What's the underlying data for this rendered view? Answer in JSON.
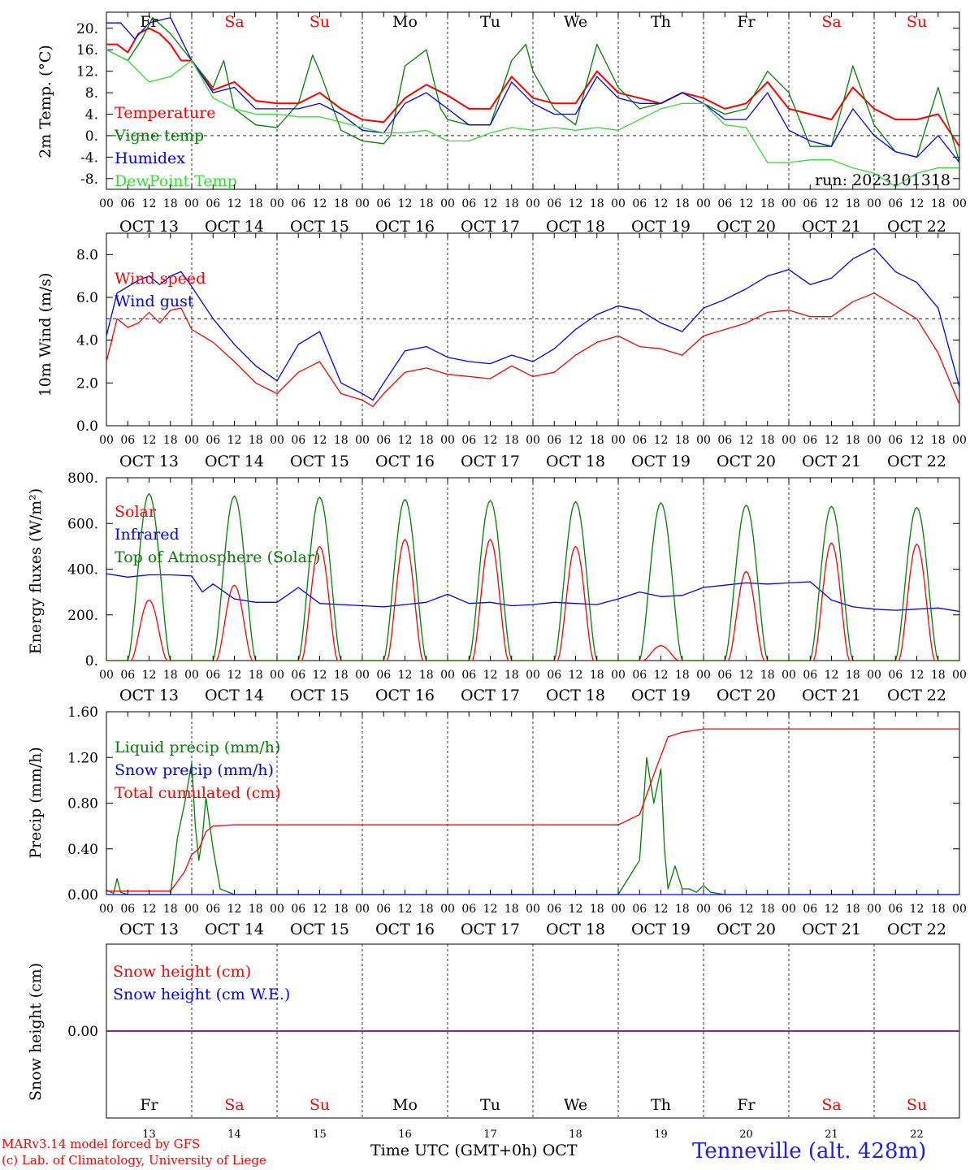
{
  "run_label": "run: 2023101318",
  "footer": {
    "credit_line1": "MARv3.14 model forced by GFS",
    "credit_line2": "(c) Lab. of Climatology, University of Liege",
    "axis_title": "Time UTC (GMT+0h) OCT",
    "station": "Tenneville (alt. 428m)"
  },
  "time_axis": {
    "hour_ticks": [
      "00",
      "06",
      "12",
      "18"
    ],
    "day_labels": [
      "OCT 13",
      "OCT 14",
      "OCT 15",
      "OCT 16",
      "OCT 17",
      "OCT 18",
      "OCT 19",
      "OCT 20",
      "OCT 21",
      "OCT 22"
    ],
    "weekdays": [
      "Fr",
      "Sa",
      "Su",
      "Mo",
      "Tu",
      "We",
      "Th",
      "Fr",
      "Sa",
      "Su"
    ],
    "weekday_colors": [
      "#000000",
      "#ff0000",
      "#ff0000",
      "#000000",
      "#000000",
      "#000000",
      "#000000",
      "#000000",
      "#ff0000",
      "#ff0000"
    ],
    "day_numbers": [
      "13",
      "14",
      "15",
      "16",
      "17",
      "18",
      "19",
      "20",
      "21",
      "22"
    ]
  },
  "chart_data": [
    {
      "type": "line",
      "ylabel": "2m Temp. (°C)",
      "ylim": [
        -10,
        23
      ],
      "yticks": [
        "20.",
        "16.",
        "12.",
        "8.",
        "4.",
        "0.",
        "-4.",
        "-8."
      ],
      "ytick_values": [
        20,
        16,
        12,
        8,
        4,
        0,
        -4,
        -8
      ],
      "dashed_reference": 0,
      "legend_placement": "top-left inside",
      "series": [
        {
          "name": "Temperature",
          "color": "#ff0000",
          "x": [
            0,
            3,
            6,
            9,
            12,
            15,
            18,
            21,
            24,
            30,
            36,
            42,
            48,
            54,
            60,
            66,
            72,
            78,
            84,
            90,
            96,
            102,
            108,
            114,
            120,
            126,
            132,
            138,
            144,
            150,
            156,
            162,
            168,
            174,
            180,
            186,
            192,
            198,
            204,
            210,
            216,
            222,
            228,
            234,
            240
          ],
          "y": [
            17,
            17,
            15.5,
            19,
            20,
            19,
            17,
            14,
            14,
            8.5,
            10,
            6.5,
            6,
            6,
            8,
            5,
            3,
            2.5,
            7,
            9.5,
            7.5,
            5,
            5,
            11,
            7,
            6,
            6,
            12,
            8,
            7,
            6,
            8,
            7,
            5,
            6,
            10,
            5,
            4,
            3,
            9,
            5,
            3,
            3,
            4,
            -2
          ]
        },
        {
          "name": "Vigne temp",
          "color": "#008000",
          "x": [
            0,
            6,
            10,
            13,
            18,
            24,
            30,
            33,
            36,
            42,
            48,
            54,
            58,
            60,
            66,
            72,
            78,
            80,
            84,
            90,
            94,
            96,
            102,
            108,
            114,
            118,
            120,
            126,
            132,
            138,
            144,
            150,
            156,
            162,
            168,
            174,
            180,
            186,
            192,
            198,
            204,
            210,
            216,
            222,
            228,
            234,
            240
          ],
          "y": [
            16,
            14,
            18,
            22,
            19,
            14,
            9,
            14,
            5,
            2,
            1.5,
            6,
            15,
            12,
            1,
            -1,
            -1.5,
            0,
            13,
            16,
            5,
            3,
            2,
            2,
            14,
            17,
            12,
            5,
            2,
            17,
            9,
            5,
            6,
            8,
            6,
            4,
            5,
            12,
            8,
            -2,
            -2,
            13,
            2,
            -3,
            -4,
            9,
            -5
          ]
        },
        {
          "name": "Humidex",
          "color": "#0000ff",
          "x": [
            0,
            4,
            8,
            12,
            18,
            24,
            30,
            36,
            42,
            48,
            54,
            60,
            66,
            72,
            78,
            84,
            90,
            96,
            102,
            108,
            114,
            120,
            126,
            132,
            138,
            144,
            150,
            156,
            162,
            168,
            174,
            180,
            186,
            192,
            198,
            204,
            210,
            216,
            222,
            228,
            234,
            240
          ],
          "y": [
            21,
            21,
            18,
            21,
            22,
            14,
            8,
            9,
            5,
            5,
            5,
            6,
            4,
            1,
            0.5,
            6,
            8,
            5,
            2,
            2,
            10,
            6,
            4,
            4,
            11,
            7,
            6,
            6,
            8,
            6,
            3,
            3,
            8,
            1,
            -1,
            -2,
            5,
            0,
            -3,
            -4,
            0,
            -5
          ]
        },
        {
          "name": "DewPoint Temp",
          "color": "#33dd33",
          "x": [
            0,
            6,
            12,
            18,
            24,
            30,
            36,
            42,
            48,
            54,
            60,
            66,
            72,
            78,
            84,
            90,
            96,
            102,
            108,
            114,
            120,
            126,
            132,
            138,
            144,
            150,
            156,
            162,
            168,
            174,
            180,
            186,
            192,
            198,
            204,
            210,
            216,
            222,
            228,
            234,
            240
          ],
          "y": [
            16,
            14,
            10,
            11,
            14,
            7,
            5,
            4,
            4,
            3.5,
            3.5,
            2.5,
            1.5,
            0.5,
            0.5,
            1,
            -1,
            -1,
            0.5,
            1.5,
            1,
            1.5,
            1,
            1.5,
            1,
            3,
            5,
            6,
            6,
            2,
            1.5,
            -5,
            -5,
            -4.5,
            -4.5,
            -6,
            -7,
            -9.5,
            -7,
            -6,
            -6
          ]
        }
      ]
    },
    {
      "type": "line",
      "ylabel": "10m Wind (m/s)",
      "ylim": [
        0,
        9
      ],
      "yticks": [
        "8.0",
        "6.0",
        "4.0",
        "2.0",
        "0.0"
      ],
      "ytick_values": [
        8,
        6,
        4,
        2,
        0
      ],
      "dashed_reference": 5,
      "legend_placement": "top-left inside",
      "series": [
        {
          "name": "Wind speed",
          "color": "#ff0000",
          "x": [
            0,
            3,
            6,
            9,
            12,
            15,
            18,
            21,
            24,
            30,
            36,
            42,
            48,
            54,
            60,
            66,
            72,
            75,
            78,
            84,
            90,
            96,
            102,
            108,
            114,
            120,
            126,
            132,
            138,
            144,
            150,
            156,
            162,
            168,
            174,
            180,
            186,
            192,
            198,
            204,
            210,
            216,
            222,
            228,
            234,
            240
          ],
          "y": [
            3,
            5,
            4.6,
            4.8,
            5.3,
            4.8,
            5.4,
            5.5,
            4.5,
            3.9,
            3,
            2,
            1.5,
            2.5,
            3,
            1.5,
            1.2,
            0.9,
            1.5,
            2.5,
            2.7,
            2.4,
            2.3,
            2.2,
            2.8,
            2.3,
            2.5,
            3.3,
            3.9,
            4.2,
            3.7,
            3.6,
            3.3,
            4.2,
            4.5,
            4.8,
            5.3,
            5.4,
            5.1,
            5.1,
            5.8,
            6.2,
            5.6,
            5,
            3.4,
            1
          ]
        },
        {
          "name": "Wind gust",
          "color": "#0000ff",
          "x": [
            0,
            3,
            6,
            9,
            12,
            15,
            18,
            21,
            24,
            30,
            36,
            42,
            48,
            54,
            60,
            66,
            72,
            75,
            78,
            84,
            90,
            96,
            102,
            108,
            114,
            120,
            126,
            132,
            138,
            144,
            150,
            156,
            162,
            168,
            174,
            180,
            186,
            192,
            198,
            204,
            210,
            216,
            222,
            228,
            234,
            240
          ],
          "y": [
            4.2,
            6.2,
            6.5,
            6.8,
            7,
            6.6,
            7,
            7.2,
            6.5,
            5,
            3.8,
            2.8,
            2.1,
            3.8,
            4.4,
            2,
            1.5,
            1.2,
            2,
            3.5,
            3.7,
            3.2,
            3,
            2.9,
            3.3,
            3,
            3.6,
            4.5,
            5.2,
            5.6,
            5.4,
            4.8,
            4.4,
            5.5,
            5.9,
            6.4,
            7,
            7.3,
            6.6,
            6.9,
            7.8,
            8.3,
            7.2,
            6.7,
            5.5,
            1.8
          ]
        }
      ]
    },
    {
      "type": "line",
      "ylabel": "Energy fluxes (W/m²)",
      "ylim": [
        0,
        800
      ],
      "yticks": [
        "800.",
        "600.",
        "400.",
        "200.",
        "0."
      ],
      "ytick_values": [
        800,
        600,
        400,
        200,
        0
      ],
      "legend_placement": "top-left inside",
      "series": [
        {
          "name": "Solar",
          "color": "#ff0000",
          "day_peaks": [
            265,
            330,
            500,
            530,
            530,
            500,
            65,
            390,
            515,
            510
          ],
          "peak_hour": 12,
          "day_length_hours": 10
        },
        {
          "name": "Infrared",
          "color": "#0000ff",
          "x": [
            0,
            6,
            12,
            18,
            24,
            27,
            30,
            36,
            42,
            48,
            54,
            60,
            66,
            72,
            78,
            84,
            90,
            96,
            102,
            108,
            114,
            120,
            126,
            132,
            138,
            144,
            150,
            156,
            162,
            168,
            174,
            180,
            186,
            192,
            198,
            204,
            210,
            216,
            222,
            228,
            234,
            240
          ],
          "y": [
            380,
            365,
            375,
            375,
            370,
            300,
            335,
            270,
            255,
            255,
            320,
            250,
            245,
            240,
            235,
            245,
            255,
            290,
            250,
            255,
            240,
            245,
            255,
            250,
            245,
            270,
            300,
            280,
            285,
            320,
            330,
            340,
            335,
            340,
            345,
            265,
            235,
            225,
            220,
            225,
            230,
            215
          ]
        },
        {
          "name": "Top of Atmosphere (Solar)",
          "color": "#008000",
          "day_peaks": [
            730,
            720,
            715,
            705,
            700,
            695,
            690,
            680,
            675,
            670
          ],
          "peak_hour": 12,
          "day_length_hours": 12
        }
      ]
    },
    {
      "type": "line",
      "ylabel": "Precip (mm/h)",
      "ylim": [
        0,
        1.6
      ],
      "yticks": [
        "1.60",
        "1.20",
        "0.80",
        "0.40",
        "0.00"
      ],
      "ytick_values": [
        1.6,
        1.2,
        0.8,
        0.4,
        0
      ],
      "legend_placement": "top-left inside",
      "series": [
        {
          "name": "Liquid precip (mm/h)",
          "color": "#008000",
          "x": [
            0,
            2,
            3,
            4,
            6,
            18,
            20,
            22,
            24,
            25,
            26,
            27,
            28,
            30,
            32,
            36,
            144,
            148,
            150,
            152,
            154,
            156,
            157,
            158,
            160,
            162,
            164,
            166,
            168,
            170,
            174,
            240
          ],
          "y": [
            0.04,
            0.01,
            0.14,
            0.02,
            0,
            0,
            0.5,
            0.8,
            1.15,
            0.6,
            0.3,
            0.5,
            0.85,
            0.4,
            0.05,
            0,
            0,
            0.2,
            0.3,
            1.2,
            0.8,
            1.1,
            0.4,
            0.05,
            0.25,
            0.05,
            0.05,
            0.02,
            0.08,
            0.02,
            0,
            0
          ]
        },
        {
          "name": "Snow precip (mm/h)",
          "color": "#0000ff",
          "x": [
            0,
            240
          ],
          "y": [
            0,
            0
          ]
        },
        {
          "name": "Total cumulated (cm)",
          "color": "#ff0000",
          "x": [
            0,
            18,
            22,
            24,
            26,
            28,
            30,
            36,
            144,
            150,
            154,
            158,
            162,
            168,
            174,
            240
          ],
          "y": [
            0.03,
            0.03,
            0.2,
            0.35,
            0.4,
            0.55,
            0.6,
            0.61,
            0.61,
            0.7,
            1.05,
            1.38,
            1.42,
            1.45,
            1.45,
            1.45
          ]
        }
      ]
    },
    {
      "type": "line",
      "ylabel": "Snow height (cm)",
      "ylim": [
        -1,
        1
      ],
      "yticks": [
        "0.00"
      ],
      "ytick_values": [
        0
      ],
      "legend_placement": "top-left inside",
      "series": [
        {
          "name": "Snow height (cm)",
          "color": "#ff0000",
          "x": [
            0,
            240
          ],
          "y": [
            0,
            0
          ]
        },
        {
          "name": "Snow height (cm W.E.)",
          "color": "#0000ff",
          "x": [
            0,
            240
          ],
          "y": [
            0,
            0
          ]
        }
      ]
    }
  ]
}
